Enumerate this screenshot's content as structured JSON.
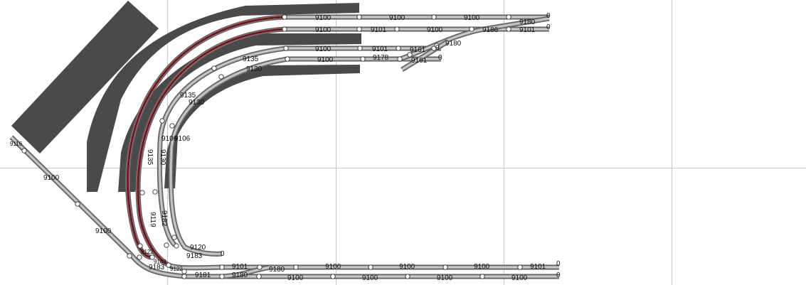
{
  "canvas": {
    "background": "#ffffff",
    "grid_color": "#c8c8c8"
  },
  "colors": {
    "rail": "#5f5f5f",
    "rail_core": "#a9a9a9",
    "rail_tie": "#d2d2d2",
    "highlight": "#7a1414",
    "platform": "#4a4a4a",
    "joint_fill": "#ffffff",
    "joint_stroke": "#333333"
  },
  "labels": {
    "top_row1": [
      "9100",
      "9100",
      "9100",
      "9180",
      "0"
    ],
    "top_row2": [
      "9100",
      "9101",
      "9100",
      "9186",
      "9101",
      "0"
    ],
    "top_row3": [
      "9100",
      "9101",
      "9161",
      "0",
      "9180"
    ],
    "top_row4": [
      "9100",
      "9178",
      "9161",
      "0"
    ],
    "curve": [
      "9135",
      "9130",
      "9135",
      "9130",
      "9106",
      "9106",
      "9135",
      "9130",
      "9119",
      "9182"
    ],
    "left": [
      "9116",
      "9100",
      "9100"
    ],
    "bottom_area": [
      "9120",
      "9183",
      "0",
      "9122",
      "9183",
      "9183",
      "9122"
    ],
    "bottom_row1": [
      "9101",
      "9180",
      "9100",
      "9100",
      "9100",
      "9101",
      "0"
    ],
    "bottom_row2": [
      "9181",
      "9180",
      "9100",
      "9100",
      "9100",
      "9100",
      "0"
    ]
  }
}
